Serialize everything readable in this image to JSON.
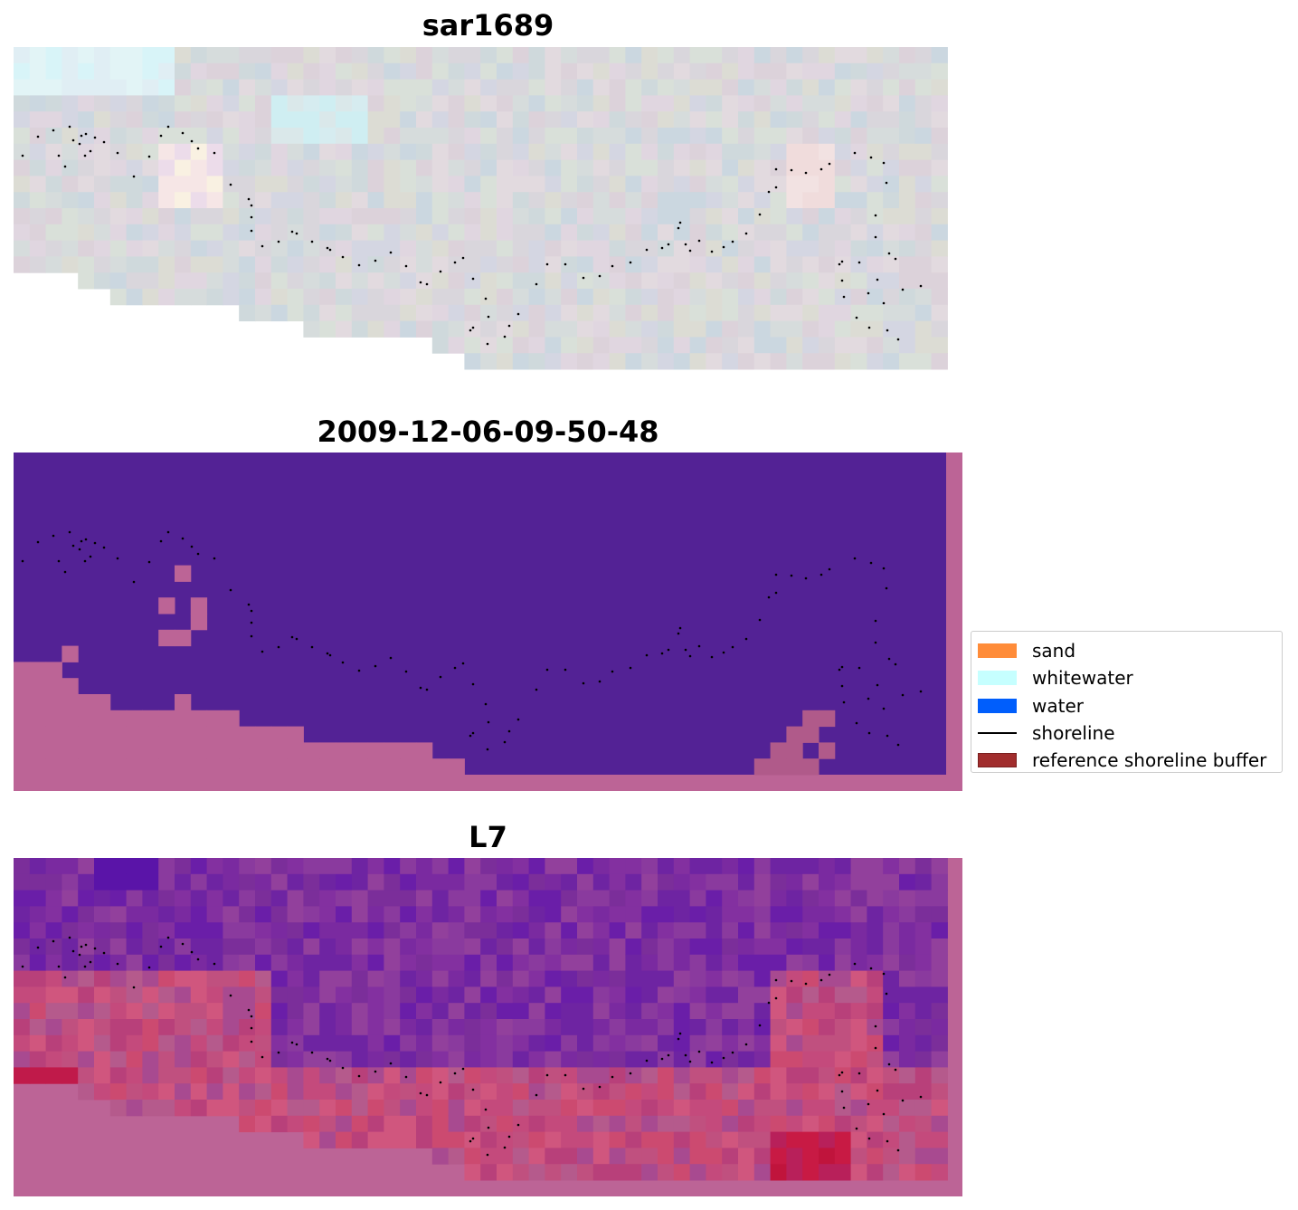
{
  "panels": [
    {
      "title": "sar1689"
    },
    {
      "title": "2009-12-06-09-50-48"
    },
    {
      "title": "L7"
    }
  ],
  "legend": {
    "items": [
      {
        "label": "sand",
        "color": "#ff8c39",
        "kind": "patch"
      },
      {
        "label": "whitewater",
        "color": "#c6ffff",
        "kind": "patch"
      },
      {
        "label": "water",
        "color": "#005efc",
        "kind": "patch"
      },
      {
        "label": "shoreline",
        "color": "#000000",
        "kind": "line"
      },
      {
        "label": "reference shoreline buffer",
        "color": "#a12d2d",
        "kind": "patch"
      }
    ]
  },
  "colors": {
    "classified_water": "#532295",
    "buffer_overlay": "#bc6496",
    "shoreline_points": "#000000"
  }
}
